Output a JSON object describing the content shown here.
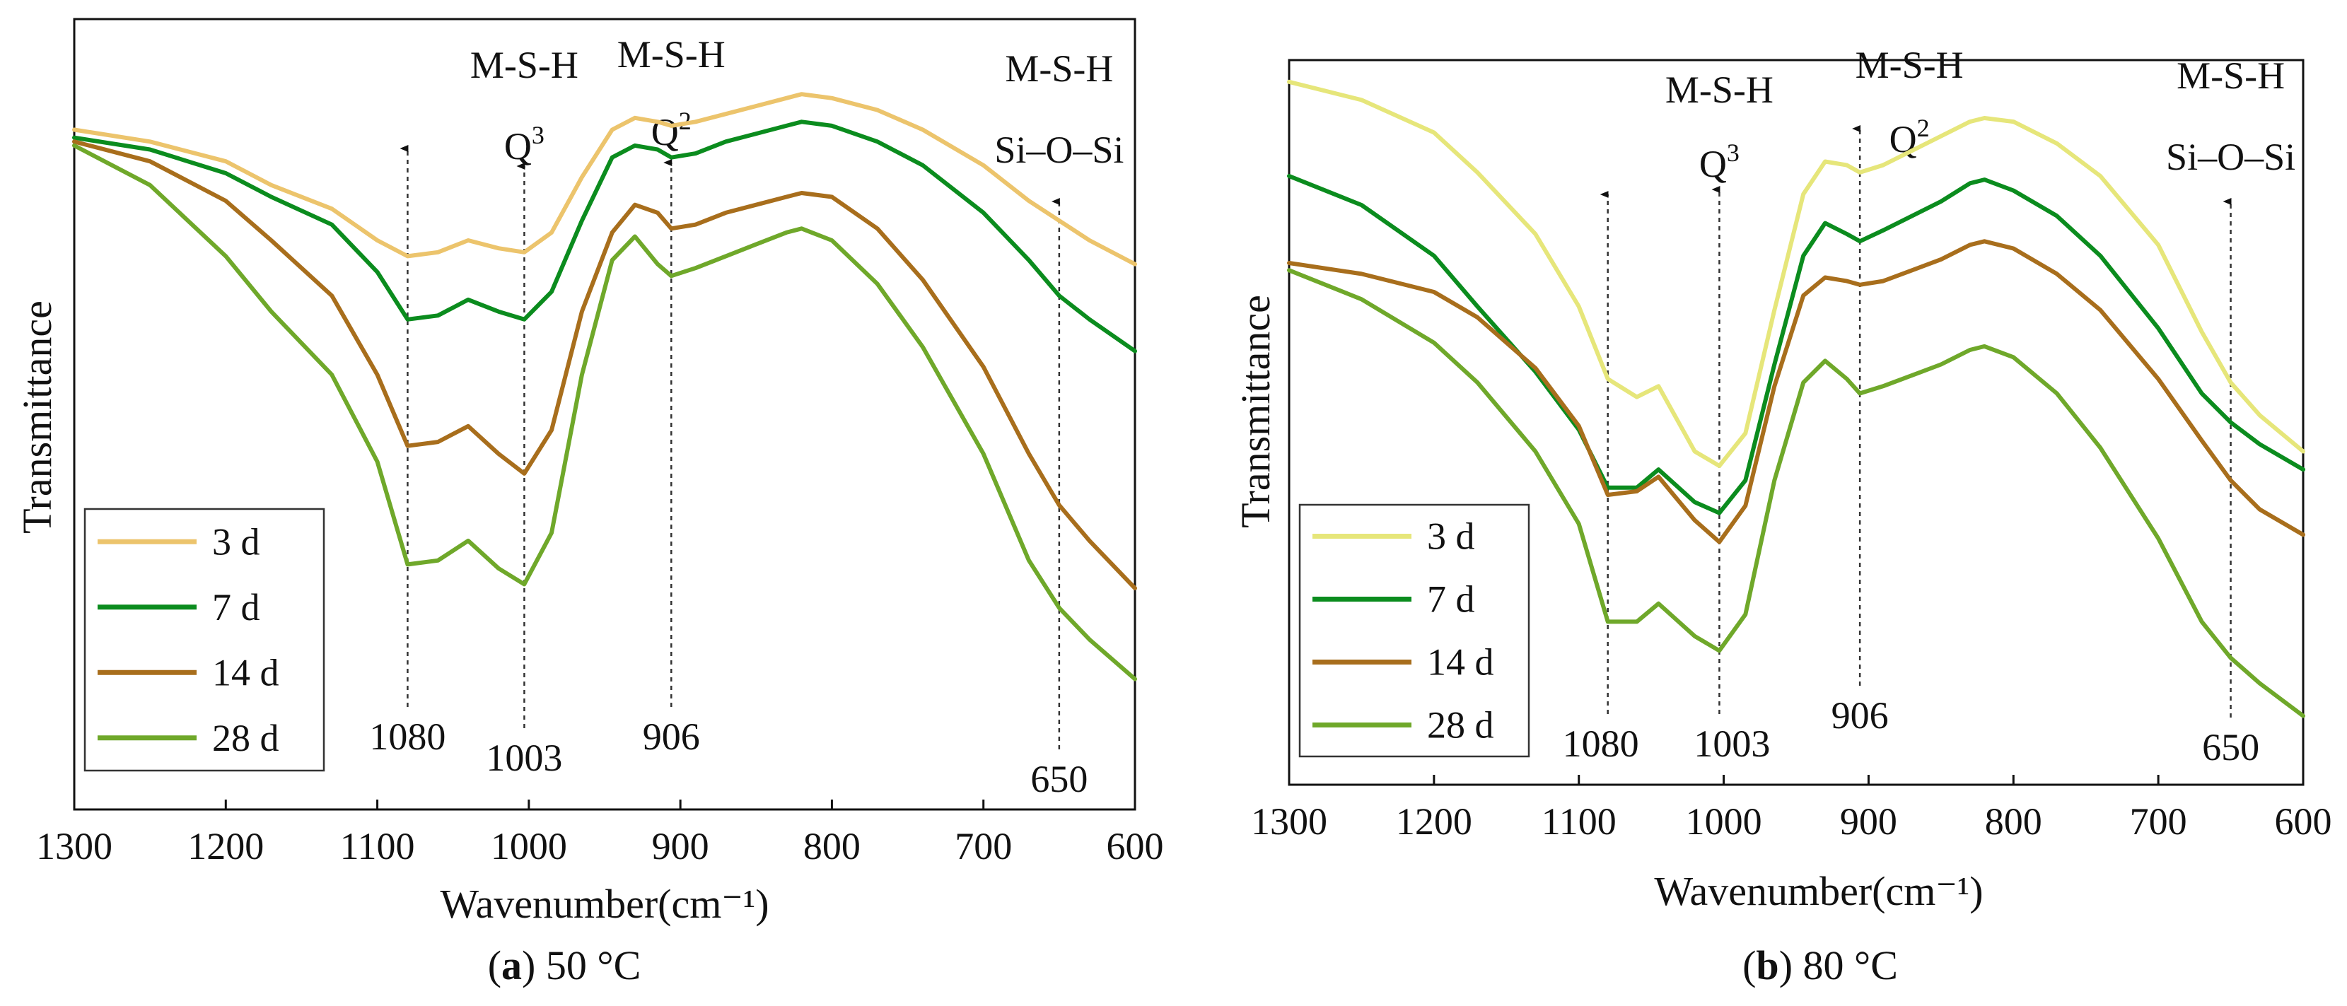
{
  "colors": {
    "3 d (a)": "#ecc46c",
    "3 d (b)": "#e6e67a",
    "7 d": "#0b8c1e",
    "14 d": "#a86e1c",
    "28 d": "#6fa82a",
    "axis": "#111111"
  },
  "chart_data": [
    {
      "type": "line",
      "panel": "a",
      "caption": {
        "letter": "a",
        "text": "50 °C"
      },
      "xlabel": "Wavenumber(cm⁻¹)",
      "ylabel": "Transmittance",
      "xlim": [
        1300,
        600
      ],
      "x_ticks": [
        1300,
        1200,
        1100,
        1000,
        900,
        800,
        700,
        600
      ],
      "ylim": [
        0,
        100
      ],
      "grid": false,
      "legend_position": "bottom-left",
      "x": [
        1300,
        1250,
        1200,
        1170,
        1130,
        1100,
        1080,
        1060,
        1040,
        1020,
        1003,
        985,
        965,
        945,
        930,
        915,
        906,
        890,
        870,
        850,
        830,
        820,
        800,
        770,
        740,
        700,
        670,
        650,
        630,
        600
      ],
      "series": [
        {
          "name": "3 d",
          "values": [
            86,
            84.5,
            82,
            79,
            76,
            72,
            70,
            70.5,
            72,
            71,
            70.5,
            73,
            80,
            86,
            87.5,
            87,
            86.5,
            87,
            88,
            89,
            90,
            90.5,
            90,
            88.5,
            86,
            81.5,
            77,
            74.5,
            72,
            69
          ]
        },
        {
          "name": "7 d",
          "values": [
            85,
            83.5,
            80.5,
            77.5,
            74,
            68,
            62,
            62.5,
            64.5,
            63,
            62,
            65.5,
            74.5,
            82.5,
            84,
            83.5,
            82.5,
            83,
            84.5,
            85.5,
            86.5,
            87,
            86.5,
            84.5,
            81.5,
            75.5,
            69.5,
            65,
            62,
            58
          ]
        },
        {
          "name": "14 d",
          "values": [
            84.5,
            82,
            77,
            72,
            65,
            55,
            46,
            46.5,
            48.5,
            45,
            42.5,
            48,
            63,
            73,
            76.5,
            75.5,
            73.5,
            74,
            75.5,
            76.5,
            77.5,
            78,
            77.5,
            73.5,
            67,
            56,
            45,
            38.5,
            34,
            28
          ]
        },
        {
          "name": "28 d",
          "values": [
            84,
            79,
            70,
            63,
            55,
            44,
            31,
            31.5,
            34,
            30.5,
            28.5,
            35,
            55,
            69.5,
            72.5,
            69,
            67.5,
            68.5,
            70,
            71.5,
            73,
            73.5,
            72,
            66.5,
            58.5,
            45,
            31.5,
            25.5,
            21.5,
            16.5
          ]
        }
      ],
      "annotations": [
        {
          "x": 1080,
          "number": "1080",
          "lines": []
        },
        {
          "x": 1003,
          "number": "1003",
          "lines": [
            "M-S-H",
            "Q3"
          ]
        },
        {
          "x": 906,
          "number": "906",
          "lines": [
            "M-S-H",
            "Q2"
          ]
        },
        {
          "x": 650,
          "number": "650",
          "lines": [
            "M-S-H",
            "Si–O–Si"
          ]
        }
      ]
    },
    {
      "type": "line",
      "panel": "b",
      "caption": {
        "letter": "b",
        "text": "80 °C"
      },
      "xlabel": "Wavenumber(cm⁻¹)",
      "ylabel": "Transmittance",
      "xlim": [
        1300,
        600
      ],
      "x_ticks": [
        1300,
        1200,
        1100,
        1000,
        900,
        800,
        700,
        600
      ],
      "ylim": [
        0,
        100
      ],
      "grid": false,
      "legend_position": "bottom-left",
      "x": [
        1300,
        1250,
        1200,
        1170,
        1130,
        1100,
        1080,
        1060,
        1045,
        1020,
        1003,
        985,
        965,
        945,
        930,
        915,
        906,
        890,
        870,
        850,
        830,
        820,
        800,
        770,
        740,
        700,
        670,
        650,
        630,
        600
      ],
      "series": [
        {
          "name": "3 d",
          "values": [
            97,
            94.5,
            90,
            84.5,
            76,
            66,
            56,
            53.5,
            55,
            46,
            44,
            48.5,
            65.5,
            81.5,
            86,
            85.5,
            84.5,
            85.5,
            87.5,
            89.5,
            91.5,
            92,
            91.5,
            88.5,
            84,
            74.5,
            62.5,
            55.5,
            51,
            46
          ]
        },
        {
          "name": "7 d",
          "values": [
            84,
            80,
            73,
            66,
            57,
            49,
            41,
            41,
            43.5,
            39,
            37.5,
            42,
            58,
            73,
            77.5,
            76,
            75,
            76.5,
            78.5,
            80.5,
            83,
            83.5,
            82,
            78.5,
            73,
            63,
            54,
            50,
            47,
            43.5
          ]
        },
        {
          "name": "14 d",
          "values": [
            72,
            70.5,
            68,
            64.5,
            57.5,
            49.5,
            40,
            40.5,
            42.5,
            36.5,
            33.5,
            38.5,
            55,
            67.5,
            70,
            69.5,
            69,
            69.5,
            71,
            72.5,
            74.5,
            75,
            74,
            70.5,
            65.5,
            56,
            47.5,
            42,
            38,
            34.5
          ]
        },
        {
          "name": "28 d",
          "values": [
            71,
            67,
            61,
            55.5,
            46,
            36,
            22.5,
            22.5,
            25,
            20.5,
            18.5,
            23.5,
            42,
            55.5,
            58.5,
            56,
            54,
            55,
            56.5,
            58,
            60,
            60.5,
            59,
            54,
            46.5,
            34,
            22.5,
            17.5,
            14,
            9.5
          ]
        }
      ],
      "annotations": [
        {
          "x": 1080,
          "number": "1080",
          "lines": []
        },
        {
          "x": 1003,
          "number": "1003",
          "lines": [
            "M-S-H",
            "Q3"
          ]
        },
        {
          "x": 906,
          "number": "906",
          "lines": [
            "M-S-H",
            "Q2"
          ]
        },
        {
          "x": 650,
          "number": "650",
          "lines": [
            "M-S-H",
            "Si–O–Si"
          ]
        }
      ]
    }
  ]
}
